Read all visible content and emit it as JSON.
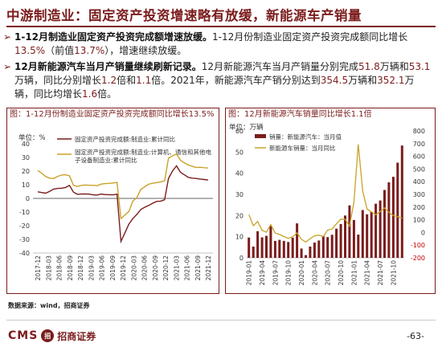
{
  "header": {
    "title": "中游制造业：固定资产投资增速略有放缓，新能源车产销量"
  },
  "bullets": [
    {
      "bold": "1-12月制造业固定资产投资完成额增速放缓。",
      "text_a": "1-12月份制造业固定资产投资完成额同比增长",
      "value_a": "13.5%",
      "text_b": "（前值",
      "value_b": "13.7%",
      "text_c": "），增速继续放缓。"
    },
    {
      "bold": "12月新能源汽车当月产销量继续刷新记录。",
      "text_a": "12月新能源汽车当月产销量分别完成",
      "value_a": "51.8",
      "text_b": "万辆和",
      "value_b": "53.1",
      "text_c": "万辆，同比分别增长",
      "value_c": "1.2",
      "text_d": "倍和",
      "value_d": "1.1",
      "text_e": "倍。2021年，新能源汽车产销分别达到",
      "value_e": "354.5",
      "text_f": "万辆和",
      "value_f": "352.1",
      "text_g": "万辆，同比均增长",
      "value_g": "1.6",
      "text_h": "倍。"
    }
  ],
  "footer": {
    "source": "数据来源：wind，招商证券",
    "logo_text": "CMS",
    "logo_seal": "招",
    "logo_cn": "招商证券",
    "page": "-63-"
  },
  "chart_data": [
    {
      "type": "line",
      "title": "图：1-12月份制造业固定资产投资完成额同比增长13.5%",
      "ylabel": "单位：%",
      "ylim": [
        -40,
        40
      ],
      "yticks": [
        40,
        30,
        20,
        10,
        0,
        -10,
        -20,
        -30,
        -40
      ],
      "x_ticks": [
        "2017-12",
        "2018-03",
        "2018-06",
        "2018-09",
        "2018-12",
        "2019-03",
        "2019-06",
        "2019-09",
        "2019-12",
        "2020-03",
        "2020-06",
        "2020-09",
        "2020-12",
        "2021-03",
        "2021-06",
        "2021-09",
        "2021-12"
      ],
      "legend_placement": "top",
      "colors": {
        "series1": "#7b1c1c",
        "series2": "#c9a227",
        "zero": "#333333"
      },
      "series": [
        {
          "name": "固定资产投资完成额:制造业:累计同比",
          "values": [
            4.8,
            4.3,
            3.8,
            5.2,
            6.8,
            7.3,
            7.5,
            8.0,
            9.5,
            4.6,
            3.0,
            3.2,
            3.3,
            3.1,
            2.6,
            2.5,
            3.2,
            2.8,
            2.7,
            2.6,
            3.1,
            -31.5,
            -25.2,
            -18.8,
            -14.8,
            -11.7,
            -8.1,
            -6.5,
            -5.2,
            -3.5,
            -2.2,
            -2.0,
            -1.0,
            14.7,
            20.0,
            23.8,
            19.2,
            17.3,
            15.4,
            14.8,
            14.6,
            14.2,
            13.8,
            13.5
          ]
        },
        {
          "name": "固定资产投资完成额:制造业:计算机、通信和其他电子设备制造业:累计同比",
          "values": [
            20.5,
            18.4,
            16.0,
            14.8,
            14.5,
            16.1,
            17.1,
            17.3,
            16.6,
            9.6,
            8.8,
            9.5,
            9.8,
            9.6,
            9.6,
            9.3,
            10.5,
            10.8,
            11.0,
            11.3,
            11.7,
            -14.8,
            -12.1,
            -9.5,
            -2.0,
            0.6,
            6.5,
            8.5,
            10.4,
            11.1,
            11.6,
            12.0,
            12.9,
            29.5,
            31.1,
            32.5,
            28.0,
            26.0,
            24.5,
            23.5,
            22.6,
            22.8,
            22.5,
            22.3
          ]
        }
      ]
    },
    {
      "type": "bar",
      "title": "图：12月新能源汽车销量同比增长1.1倍",
      "ylabel": "单位：万辆",
      "ylim_left": [
        0,
        60
      ],
      "ylim_right": [
        -200,
        800
      ],
      "yticks_left": [
        60,
        50,
        40,
        30,
        20,
        10,
        0
      ],
      "yticks_right": [
        800,
        700,
        600,
        500,
        400,
        300,
        200,
        100,
        0,
        -100,
        -200
      ],
      "x_ticks": [
        "2019-01",
        "2019-04",
        "2019-07",
        "2019-10",
        "2020-01",
        "2020-04",
        "2020-07",
        "2020-10",
        "2021-01",
        "2021-04",
        "2021-07",
        "2021-10"
      ],
      "legend_placement": "top-left",
      "colors": {
        "bars": "#7b1c1c",
        "line": "#c9a227"
      },
      "series": [
        {
          "name": "销量：新能源汽车：当月值",
          "values": [
            9.6,
            5.3,
            12.6,
            9.7,
            10.4,
            15.2,
            8.0,
            8.5,
            8.0,
            7.5,
            9.5,
            16.3,
            4.4,
            1.3,
            5.3,
            7.2,
            8.2,
            10.4,
            9.8,
            10.9,
            13.8,
            16.0,
            20.0,
            24.8,
            17.9,
            11.0,
            22.6,
            20.6,
            21.7,
            25.6,
            27.1,
            32.1,
            35.7,
            38.3,
            45.0,
            53.1
          ]
        },
        {
          "name": "新能源车销量：当月同比",
          "axis": "right",
          "values": [
            140,
            53,
            86,
            18,
            1,
            62,
            -4.7,
            -16,
            -32,
            -46,
            -34,
            -3,
            -54,
            -75,
            -49,
            -26,
            -21,
            -32,
            19,
            27,
            68,
            105,
            104,
            49,
            238,
            694,
            327,
            185,
            162,
            140,
            164,
            195,
            159,
            133,
            125,
            113
          ]
        }
      ]
    }
  ]
}
